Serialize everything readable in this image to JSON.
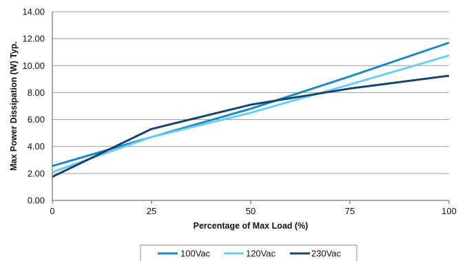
{
  "chart_data": {
    "type": "line",
    "title": "",
    "xlabel": "Percentage of Max Load (%)",
    "ylabel": "Max Power Dissipation (W) Typ.",
    "xlim": [
      0,
      100
    ],
    "ylim": [
      0,
      14
    ],
    "x_ticks": [
      "0",
      "25",
      "50",
      "75",
      "100"
    ],
    "y_ticks": [
      "0.00",
      "2.00",
      "4.00",
      "6.00",
      "8.00",
      "10.00",
      "12.00",
      "14.00"
    ],
    "grid": "horizontal",
    "legend_position": "bottom",
    "series": [
      {
        "name": "100Vac",
        "color": "#1a86c7",
        "x": [
          0,
          25,
          50,
          75,
          100
        ],
        "y": [
          2.55,
          4.7,
          6.8,
          9.2,
          11.7
        ]
      },
      {
        "name": "120Vac",
        "color": "#6ccdf0",
        "x": [
          0,
          25,
          50,
          75,
          100
        ],
        "y": [
          2.1,
          4.7,
          6.5,
          8.6,
          10.75
        ]
      },
      {
        "name": "230Vac",
        "color": "#15436b",
        "x": [
          0,
          25,
          50,
          75,
          100
        ],
        "y": [
          1.75,
          5.3,
          7.1,
          8.3,
          9.25
        ]
      }
    ]
  }
}
